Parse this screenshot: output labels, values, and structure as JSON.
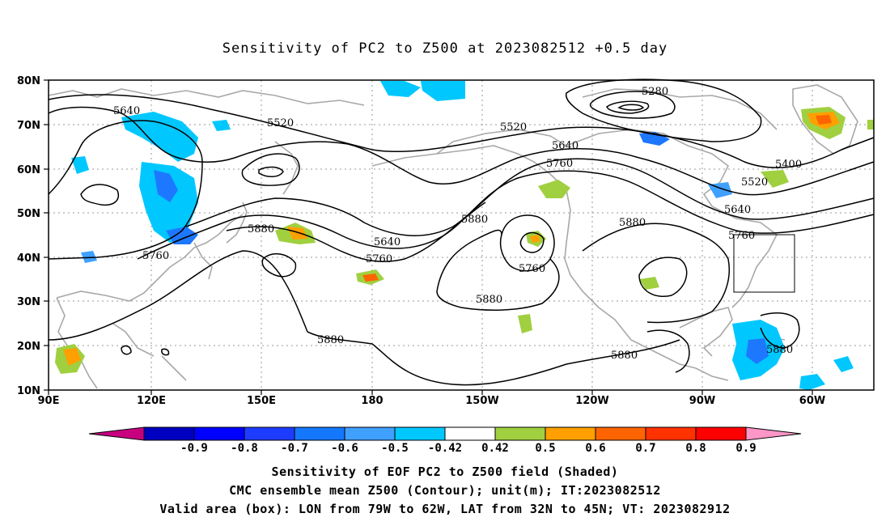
{
  "title": "Sensitivity of PC2 to Z500 at 2023082512 +0.5 day",
  "map": {
    "lon_ticks": [
      "90E",
      "120E",
      "150E",
      "180",
      "150W",
      "120W",
      "90W",
      "60W"
    ],
    "lat_ticks": [
      "80N",
      "70N",
      "60N",
      "50N",
      "40N",
      "30N",
      "20N",
      "10N"
    ],
    "contour_labels": [
      "5280",
      "5400",
      "5520",
      "5520",
      "5520",
      "5640",
      "5640",
      "5640",
      "5640",
      "5760",
      "5760",
      "5760",
      "5760",
      "5760",
      "5880",
      "5880",
      "5880",
      "5880",
      "5880",
      "5880",
      "5880"
    ],
    "valid_box": {
      "lon_west": "79W",
      "lon_east": "62W",
      "lat_south": "32N",
      "lat_north": "45N"
    }
  },
  "colorbar": {
    "labels": [
      "-0.9",
      "-0.8",
      "-0.7",
      "-0.6",
      "-0.5",
      "-0.42",
      "0.42",
      "0.5",
      "0.6",
      "0.7",
      "0.8",
      "0.9"
    ],
    "colors": [
      "#c80080",
      "#0000c0",
      "#0000ff",
      "#1e3cff",
      "#1478ff",
      "#40a0ff",
      "#00c8ff",
      "#ffffff",
      "#a0d040",
      "#ffa000",
      "#ff6400",
      "#ff3200",
      "#ff0000",
      "#ff96c8"
    ]
  },
  "footer": {
    "line1": "Sensitivity of EOF PC2 to Z500 field (Shaded)",
    "line2": "CMC ensemble mean Z500 (Contour); unit(m); IT:2023082512",
    "line3": "Valid area (box): LON from 79W to 62W, LAT from 32N to 45N; VT: 2023082912"
  }
}
